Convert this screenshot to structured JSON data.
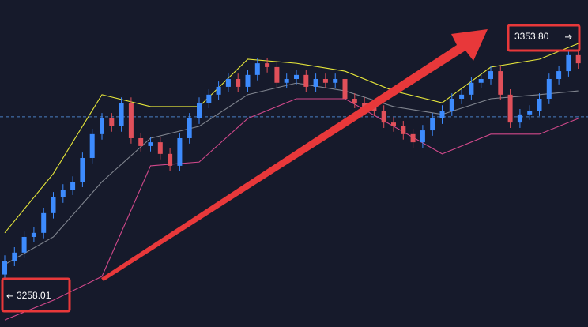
{
  "chart_data": {
    "type": "candlestick",
    "ylim": [
      3246.6,
      3367.5
    ],
    "open": [
      3266.0,
      3271.1,
      3274.1,
      3279.9,
      3281.4,
      3288.7,
      3294.5,
      3297.4,
      3300.3,
      3309.1,
      3317.9,
      3323.7,
      3320.8,
      3329.5,
      3316.4,
      3313.5,
      3314.9,
      3310.6,
      3306.2,
      3316.4,
      3323.7,
      3329.5,
      3332.5,
      3335.4,
      3338.3,
      3335.4,
      3339.8,
      3344.1,
      3342.7,
      3336.9,
      3338.3,
      3339.8,
      3335.4,
      3338.3,
      3336.9,
      3338.3,
      3331.0,
      3329.5,
      3328.1,
      3326.6,
      3322.2,
      3320.8,
      3317.9,
      3314.9,
      3319.3,
      3323.7,
      3326.6,
      3331.0,
      3332.5,
      3336.9,
      3338.3,
      3341.2,
      3332.5,
      3322.2,
      3325.2,
      3326.6,
      3331.0,
      3338.3,
      3341.2,
      3347.1
    ],
    "high": [
      3273.1,
      3276.1,
      3281.9,
      3283.4,
      3290.7,
      3296.5,
      3299.4,
      3302.3,
      3311.1,
      3319.9,
      3325.7,
      3325.7,
      3331.5,
      3331.5,
      3318.4,
      3316.9,
      3316.9,
      3312.6,
      3318.4,
      3325.7,
      3331.5,
      3334.5,
      3337.4,
      3340.3,
      3340.3,
      3341.8,
      3346.1,
      3346.1,
      3344.7,
      3340.3,
      3341.8,
      3341.8,
      3340.3,
      3340.3,
      3340.3,
      3340.3,
      3333.0,
      3331.5,
      3330.1,
      3328.6,
      3324.2,
      3322.8,
      3319.9,
      3321.3,
      3325.7,
      3328.6,
      3333.0,
      3334.5,
      3338.9,
      3340.3,
      3343.2,
      3343.2,
      3334.5,
      3327.2,
      3328.6,
      3333.0,
      3340.3,
      3343.2,
      3349.1,
      3349.1
    ],
    "low": [
      3264.0,
      3269.1,
      3272.1,
      3277.9,
      3279.4,
      3286.7,
      3292.5,
      3295.4,
      3298.3,
      3307.1,
      3315.9,
      3318.8,
      3318.8,
      3314.4,
      3311.5,
      3311.5,
      3308.6,
      3304.2,
      3304.2,
      3314.4,
      3321.7,
      3327.5,
      3330.5,
      3333.4,
      3333.4,
      3333.4,
      3337.8,
      3340.7,
      3334.9,
      3334.9,
      3336.3,
      3333.4,
      3333.4,
      3334.9,
      3334.9,
      3329.0,
      3327.5,
      3326.1,
      3324.6,
      3320.2,
      3318.8,
      3315.9,
      3312.9,
      3312.9,
      3317.3,
      3321.7,
      3324.6,
      3329.0,
      3330.5,
      3334.9,
      3336.3,
      3330.5,
      3320.2,
      3320.2,
      3323.2,
      3324.6,
      3329.0,
      3336.3,
      3339.2,
      3342.1
    ],
    "close": [
      3271.1,
      3274.1,
      3279.9,
      3281.4,
      3288.7,
      3294.5,
      3297.4,
      3300.3,
      3309.1,
      3317.9,
      3323.7,
      3320.8,
      3329.5,
      3316.4,
      3313.5,
      3314.9,
      3310.6,
      3306.2,
      3316.4,
      3323.7,
      3329.5,
      3332.5,
      3335.4,
      3338.3,
      3335.4,
      3339.8,
      3344.1,
      3342.7,
      3336.9,
      3338.3,
      3339.8,
      3335.4,
      3338.3,
      3336.9,
      3338.3,
      3331.0,
      3329.5,
      3328.1,
      3326.6,
      3322.2,
      3320.8,
      3317.9,
      3314.9,
      3319.3,
      3323.7,
      3326.6,
      3331.0,
      3332.5,
      3336.9,
      3338.3,
      3341.2,
      3332.5,
      3322.2,
      3325.2,
      3326.6,
      3331.0,
      3338.3,
      3341.2,
      3347.1,
      3344.1
    ],
    "up_color": "#3d8bfd",
    "down_color": "#e0505a",
    "bands": {
      "x": [
        0,
        5,
        10,
        15,
        20,
        25,
        30,
        35,
        40,
        45,
        50,
        55,
        59
      ],
      "series": [
        {
          "color": "#e6e63a",
          "values": [
            3281.4,
            3303.3,
            3332.5,
            3328.1,
            3328.1,
            3345.6,
            3344.1,
            3341.2,
            3333.9,
            3329.5,
            3342.7,
            3345.6,
            3351.4
          ]
        },
        {
          "color": "#80858f",
          "values": [
            3269.7,
            3279.9,
            3300.3,
            3316.4,
            3320.8,
            3332.5,
            3336.8,
            3333.9,
            3328.1,
            3325.2,
            3331.0,
            3332.5,
            3333.9
          ]
        },
        {
          "color": "#d0488a",
          "values": [
            3249.2,
            3256.5,
            3265.3,
            3306.2,
            3307.6,
            3323.7,
            3331.0,
            3331.0,
            3320.8,
            3310.6,
            3317.9,
            3317.9,
            3323.7
          ]
        }
      ]
    },
    "price_line": 3324.3,
    "price_line_color": "#4a7fc4",
    "price_labels": [
      {
        "value": 3258.01,
        "label": "3258.01"
      },
      {
        "value": 3353.8,
        "label": "3353.80"
      }
    ]
  }
}
